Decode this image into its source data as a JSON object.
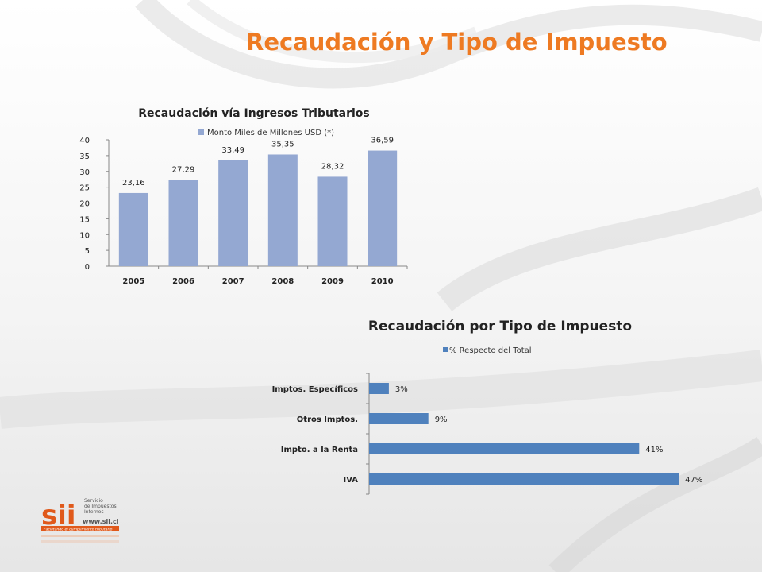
{
  "page": {
    "title": "Recaudación y Tipo de Impuesto",
    "colors": {
      "title": "#ee7a22",
      "bar1": "#94a8d2",
      "bar2": "#4f81bd",
      "logo": "#e0591b"
    }
  },
  "logo": {
    "mark": "sii",
    "line1": "Servicio",
    "line2": "de Impuestos",
    "line3": "Internos",
    "url": "www.sii.cl",
    "tagline": "Facilitando el cumplimiento tributario"
  },
  "chart_data": [
    {
      "type": "bar",
      "title": "Recaudación vía  Ingresos Tributarios",
      "legend": "Monto Miles de Millones USD (*)",
      "legend_position": "top",
      "categories": [
        "2005",
        "2006",
        "2007",
        "2008",
        "2009",
        "2010"
      ],
      "values": [
        23.16,
        27.29,
        33.49,
        35.35,
        28.32,
        36.59
      ],
      "data_labels": [
        "23,16",
        "27,29",
        "33,49",
        "35,35",
        "28,32",
        "36,59"
      ],
      "ylim": [
        0,
        40
      ],
      "yticks": [
        0,
        5,
        10,
        15,
        20,
        25,
        30,
        35,
        40
      ],
      "xlabel": "",
      "ylabel": "",
      "grid": false
    },
    {
      "type": "bar",
      "orientation": "horizontal",
      "title": "Recaudación por Tipo de Impuesto",
      "legend": "% Respecto del Total",
      "legend_position": "top",
      "categories": [
        "Imptos. Específicos",
        "Otros Imptos.",
        "Impto. a la Renta",
        "IVA"
      ],
      "values": [
        3,
        9,
        41,
        47
      ],
      "data_labels": [
        "3%",
        "9%",
        "41%",
        "47%"
      ],
      "xlim": [
        0,
        50
      ],
      "xlabel": "",
      "ylabel": "",
      "grid": false
    }
  ]
}
